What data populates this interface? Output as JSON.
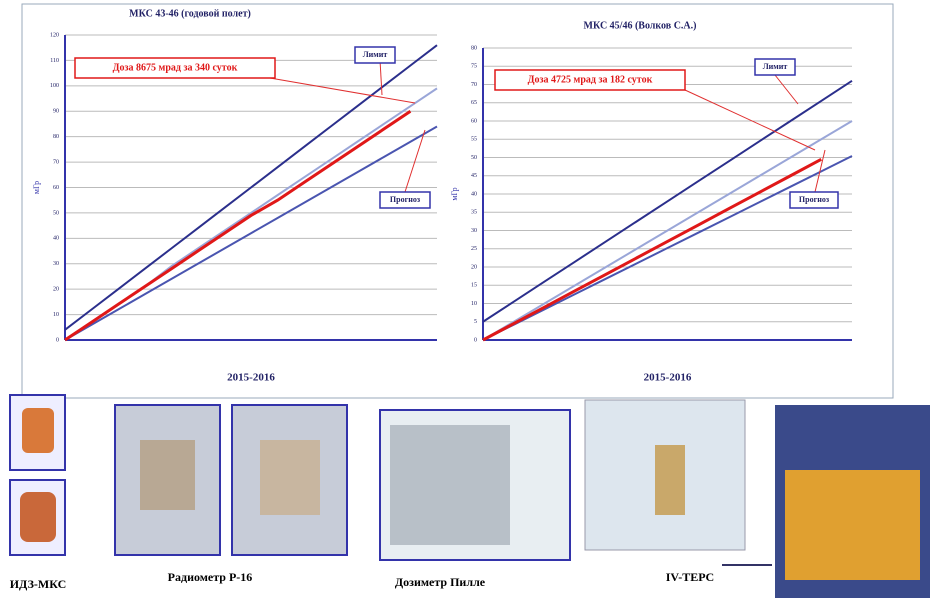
{
  "chart_data": [
    {
      "type": "line",
      "title": "МКС 43-46 (годовой полет)",
      "y_label": "мГр",
      "x_label": "2015-2016",
      "categories": [
        null,
        null,
        null,
        null,
        null,
        null,
        null,
        null,
        null,
        null,
        null,
        null,
        null,
        null,
        null
      ],
      "ylim": [
        0,
        120
      ],
      "yticks": [
        0,
        10,
        20,
        30,
        40,
        50,
        60,
        70,
        80,
        90,
        100,
        110,
        120
      ],
      "grid": true,
      "series": [
        {
          "color": "#2b2f8c",
          "values": [
            4,
            12,
            20,
            28,
            36,
            44,
            52,
            60,
            68,
            76,
            84,
            92,
            100,
            108,
            116
          ]
        },
        {
          "color": "#9aa6d8",
          "values": [
            0,
            7,
            14,
            21,
            29,
            36,
            43,
            50,
            57,
            64,
            71,
            78,
            85,
            92,
            99
          ]
        },
        {
          "color": "#4a55b0",
          "values": [
            0,
            6,
            12,
            18,
            24,
            30,
            36,
            42,
            48,
            54,
            60,
            66,
            72,
            78,
            84
          ]
        },
        {
          "color": "#e01818",
          "values": [
            0,
            7,
            14,
            21,
            28,
            35,
            42,
            49,
            55,
            62,
            69,
            76,
            83,
            90,
            null
          ]
        }
      ],
      "annotations": [
        "Доза 8675 мрад за 340 суток",
        "Лимит",
        "Прогноз"
      ]
    },
    {
      "type": "line",
      "title": "МКС 45/46 (Волков С.А.)",
      "y_label": "мГр",
      "x_label": "2015-2016",
      "categories": [
        null,
        null,
        null,
        null,
        null,
        null,
        null,
        null,
        null,
        null,
        null,
        null,
        null
      ],
      "ylim": [
        0,
        80
      ],
      "yticks": [
        0,
        5,
        10,
        15,
        20,
        25,
        30,
        35,
        40,
        45,
        50,
        55,
        60,
        65,
        70,
        75,
        80
      ],
      "grid": true,
      "series": [
        {
          "color": "#2b2f8c",
          "values": [
            5,
            10.5,
            16,
            21.5,
            27,
            32.5,
            38,
            43.5,
            49,
            54.5,
            60,
            65.5,
            71
          ]
        },
        {
          "color": "#9aa6d8",
          "values": [
            0,
            5,
            10,
            15,
            20,
            25,
            30,
            35,
            40,
            45,
            50,
            55,
            60
          ]
        },
        {
          "color": "#4a55b0",
          "values": [
            0,
            4.2,
            8.4,
            12.6,
            16.8,
            21,
            25.2,
            29.4,
            33.6,
            37.8,
            42,
            46.2,
            50.4
          ]
        },
        {
          "color": "#e01818",
          "values": [
            0,
            4.5,
            9,
            13.5,
            18,
            22.5,
            27,
            31.5,
            36,
            40.5,
            45,
            49.5,
            null
          ]
        }
      ],
      "annotations": [
        "Доза 4725 мрад за 182 суток",
        "Лимит",
        "Прогноз"
      ]
    }
  ],
  "photos": [
    {
      "caption": "ИДЗ-МКС"
    },
    {
      "caption": "Радиометр Р-16"
    },
    {
      "caption": "Дозиметр Пилле"
    },
    {
      "caption": "IV-TEPC"
    }
  ]
}
